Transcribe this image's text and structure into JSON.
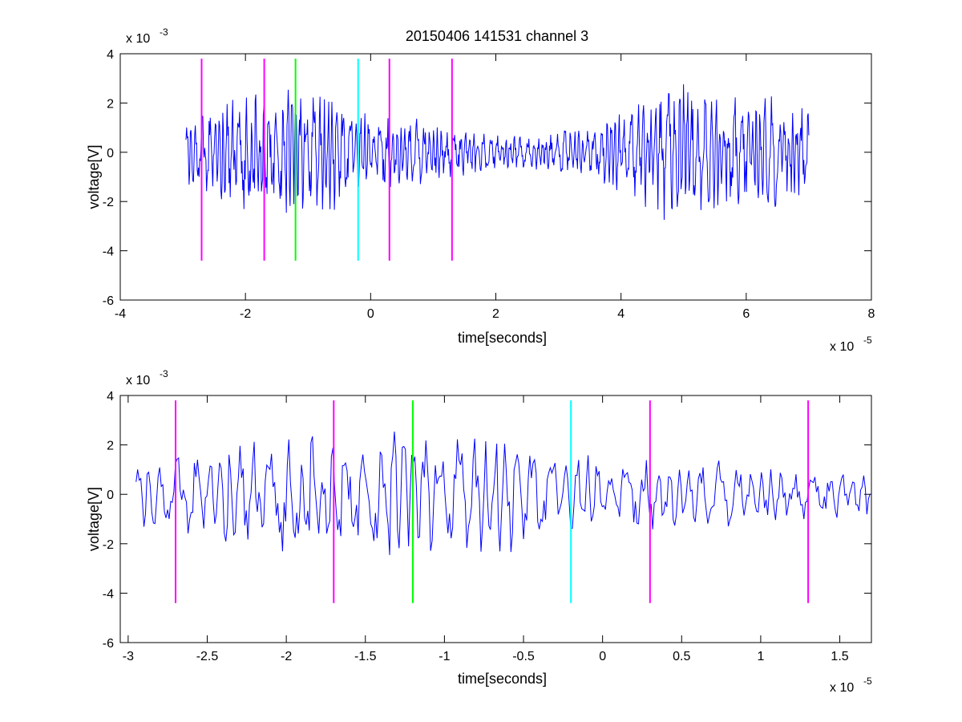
{
  "chart_data": [
    {
      "type": "line",
      "title": "20150406 141531 channel 3",
      "xlabel": "time[seconds]",
      "ylabel": "voltage[V]",
      "x_exponent_label": "x 10",
      "x_exponent_power": "-5",
      "y_exponent_label": "x 10",
      "y_exponent_power": "-3",
      "xlim": [
        -4,
        8
      ],
      "ylim": [
        -6,
        4
      ],
      "xticks": [
        -4,
        -2,
        0,
        2,
        4,
        6,
        8
      ],
      "xtick_labels": [
        "-4",
        "-2",
        "0",
        "2",
        "4",
        "6",
        "8"
      ],
      "yticks": [
        -6,
        -4,
        -2,
        0,
        2,
        4
      ],
      "ytick_labels": [
        "-6",
        "-4",
        "-2",
        "0",
        "2",
        "4"
      ],
      "grid": false,
      "signal": {
        "color": "#0000ff",
        "x_start": -2.95,
        "x_end": 7.0
      },
      "markers": [
        {
          "x": -2.7,
          "color": "#ff00ff",
          "y_bottom": -4.4,
          "y_top": 3.8
        },
        {
          "x": -1.7,
          "color": "#ff00ff",
          "y_bottom": -4.4,
          "y_top": 3.8
        },
        {
          "x": -1.2,
          "color": "#00ff00",
          "y_bottom": -4.4,
          "y_top": 3.8
        },
        {
          "x": -0.2,
          "color": "#00ffff",
          "y_bottom": -4.4,
          "y_top": 3.8
        },
        {
          "x": 0.3,
          "color": "#ff00ff",
          "y_bottom": -4.4,
          "y_top": 3.8
        },
        {
          "x": 1.3,
          "color": "#ff00ff",
          "y_bottom": -4.4,
          "y_top": 3.8
        }
      ]
    },
    {
      "type": "line",
      "title": "",
      "xlabel": "time[seconds]",
      "ylabel": "voltage[V]",
      "x_exponent_label": "x 10",
      "x_exponent_power": "-5",
      "y_exponent_label": "x 10",
      "y_exponent_power": "-3",
      "xlim": [
        -3.05,
        1.7
      ],
      "ylim": [
        -6,
        4
      ],
      "xticks": [
        -3,
        -2.5,
        -2,
        -1.5,
        -1,
        -0.5,
        0,
        0.5,
        1,
        1.5
      ],
      "xtick_labels": [
        "-3",
        "-2.5",
        "-2",
        "-1.5",
        "-1",
        "-0.5",
        "0",
        "0.5",
        "1",
        "1.5"
      ],
      "yticks": [
        -6,
        -4,
        -2,
        0,
        2,
        4
      ],
      "ytick_labels": [
        "-6",
        "-4",
        "-2",
        "0",
        "2",
        "4"
      ],
      "grid": false,
      "signal": {
        "color": "#0000ff",
        "x_start": -2.95,
        "x_end": 1.7
      },
      "markers": [
        {
          "x": -2.7,
          "color": "#ff00ff",
          "y_bottom": -4.4,
          "y_top": 3.8
        },
        {
          "x": -1.7,
          "color": "#ff00ff",
          "y_bottom": -4.4,
          "y_top": 3.8
        },
        {
          "x": -1.2,
          "color": "#00ff00",
          "y_bottom": -4.4,
          "y_top": 3.8
        },
        {
          "x": -0.2,
          "color": "#00ffff",
          "y_bottom": -4.4,
          "y_top": 3.8
        },
        {
          "x": 0.3,
          "color": "#ff00ff",
          "y_bottom": -4.4,
          "y_top": 3.8
        },
        {
          "x": 1.3,
          "color": "#ff00ff",
          "y_bottom": -4.4,
          "y_top": 3.8
        }
      ]
    }
  ]
}
